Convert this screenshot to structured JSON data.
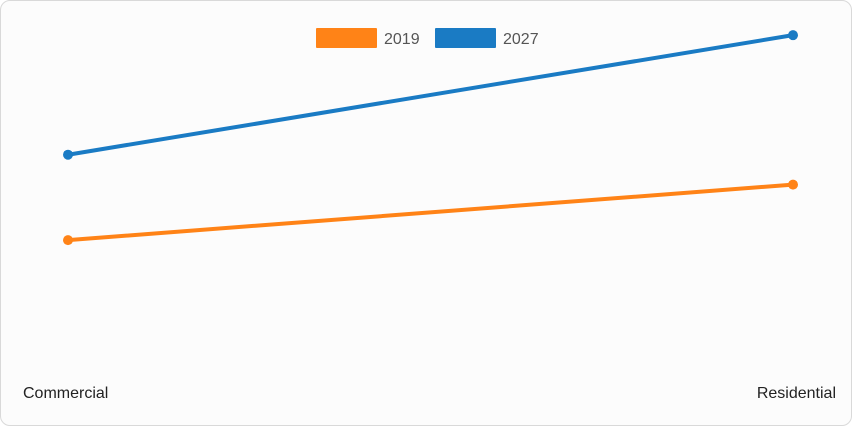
{
  "chart_data": {
    "type": "line",
    "categories": [
      "Commercial",
      "Residential"
    ],
    "series": [
      {
        "name": "2019",
        "values": [
          44,
          57
        ],
        "color": "#ff8317"
      },
      {
        "name": "2027",
        "values": [
          64,
          92
        ],
        "color": "#1a7bc4"
      }
    ],
    "ylim": [
      0,
      100
    ],
    "grid": false,
    "legend": "top-center"
  }
}
